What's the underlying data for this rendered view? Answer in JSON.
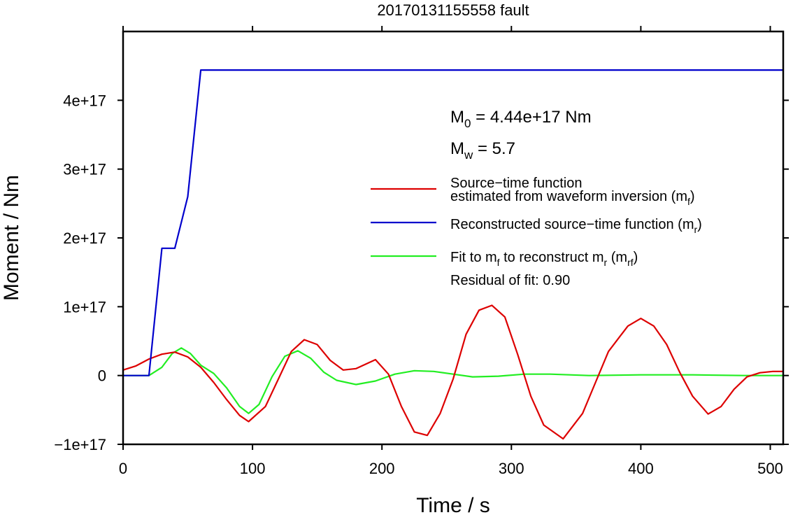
{
  "chart_data": {
    "type": "line",
    "title": "20170131155558 fault",
    "xlabel": "Time / s",
    "ylabel": "Moment / Nm",
    "xlim": [
      0,
      510
    ],
    "ylim": [
      -1e+17,
      5e+17
    ],
    "x_ticks": [
      0,
      100,
      200,
      300,
      400,
      500
    ],
    "x_tick_labels": [
      "0",
      "100",
      "200",
      "300",
      "400",
      "500"
    ],
    "y_ticks": [
      -1e+17,
      0,
      1e+17,
      2e+17,
      3e+17,
      4e+17
    ],
    "y_tick_labels": [
      "−1e+17",
      "0",
      "1e+17",
      "2e+17",
      "3e+17",
      "4e+17"
    ],
    "grid": false,
    "legend_position": "right",
    "annotations": {
      "m0": {
        "sym": "M",
        "sub": "0",
        "text": " = 4.44e+17 Nm"
      },
      "mw": {
        "sym": "M",
        "sub": "w",
        "text": " = 5.7"
      },
      "residual": "Residual of fit: 0.90"
    },
    "series": [
      {
        "name": "Source−time function estimated from waveform inversion (mf)",
        "legend_lines": [
          "Source−time function",
          "estimated from waveform inversion (m",
          "f",
          ")"
        ],
        "color": "#dd0000",
        "x": [
          0,
          10,
          20,
          30,
          40,
          50,
          60,
          70,
          80,
          90,
          97,
          110,
          120,
          130,
          140,
          150,
          160,
          170,
          180,
          195,
          205,
          215,
          225,
          235,
          245,
          255,
          265,
          275,
          285,
          295,
          305,
          315,
          325,
          340,
          355,
          365,
          375,
          390,
          400,
          410,
          420,
          430,
          440,
          452,
          462,
          472,
          482,
          492,
          502,
          510
        ],
        "y": [
          8000000000000000.0,
          1.4e+16,
          2.4e+16,
          3.1e+16,
          3.4e+16,
          2.7e+16,
          1.2e+16,
          -1e+16,
          -3.5e+16,
          -5.8e+16,
          -6.7e+16,
          -4.5e+16,
          -5000000000000000.0,
          3.5e+16,
          5.2e+16,
          4.5e+16,
          2.2e+16,
          8000000000000000.0,
          1e+16,
          2.3e+16,
          2000000000000000.0,
          -4.5e+16,
          -8.2e+16,
          -8.7e+16,
          -5.5e+16,
          -5000000000000000.0,
          6e+16,
          9.5e+16,
          1.02e+17,
          8.5e+16,
          3e+16,
          -3e+16,
          -7.2e+16,
          -9.2e+16,
          -5.5e+16,
          -1e+16,
          3.5e+16,
          7.2e+16,
          8.3e+16,
          7.2e+16,
          4.5e+16,
          5000000000000000.0,
          -3e+16,
          -5.6e+16,
          -4.5e+16,
          -2e+16,
          -2000000000000000.0,
          4000000000000000.0,
          6000000000000000.0,
          6000000000000000.0
        ]
      },
      {
        "name": "Reconstructed source−time function (mr)",
        "legend_lines": [
          "Reconstructed source−time function (m",
          "r",
          ")"
        ],
        "color": "#0000cc",
        "x": [
          0,
          20,
          30,
          40,
          50,
          60,
          510
        ],
        "y": [
          0,
          0,
          1.85e+17,
          1.85e+17,
          2.6e+17,
          4.44e+17,
          4.44e+17
        ]
      },
      {
        "name": "Fit to mf to reconstruct mr (mrf)",
        "legend_lines": [
          "Fit to m",
          "f",
          " to reconstruct m",
          "r",
          " (m",
          "rf",
          ")"
        ],
        "color": "#22ee22",
        "x": [
          0,
          20,
          30,
          38,
          45,
          52,
          60,
          70,
          80,
          90,
          97,
          105,
          115,
          125,
          135,
          145,
          155,
          165,
          180,
          195,
          210,
          225,
          240,
          255,
          270,
          290,
          310,
          330,
          360,
          400,
          440,
          480,
          510
        ],
        "y": [
          0,
          0,
          1.2e+16,
          3.2e+16,
          4e+16,
          3.2e+16,
          1.5e+16,
          3000000000000000.0,
          -1.8e+16,
          -4.5e+16,
          -5.5e+16,
          -4.2e+16,
          -2000000000000000.0,
          2.8e+16,
          3.6e+16,
          2.5e+16,
          5000000000000000.0,
          -7000000000000000.0,
          -1.3e+16,
          -8000000000000000.0,
          2000000000000000.0,
          7000000000000000.0,
          6000000000000000.0,
          2000000000000000.0,
          -2000000000000000.0,
          -1000000000000000.0,
          2000000000000000.0,
          2000000000000000.0,
          0.0,
          1000000000000000.0,
          1000000000000000.0,
          0.0,
          0.0
        ]
      }
    ]
  }
}
